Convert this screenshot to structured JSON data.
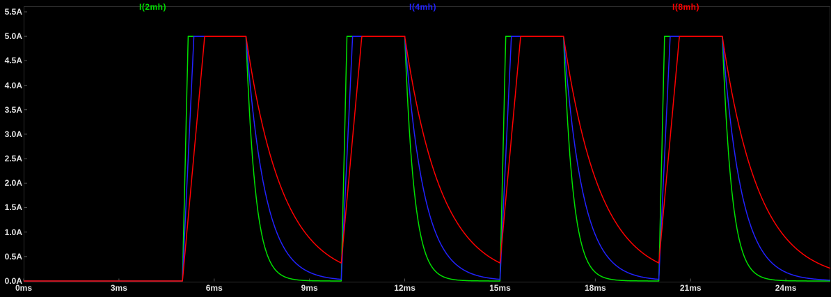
{
  "chart_data": {
    "type": "line",
    "title": "",
    "x_unit": "ms",
    "y_unit": "A",
    "xlim": [
      0,
      25.4
    ],
    "ylim": [
      0,
      5.5
    ],
    "x_ticks": [
      0,
      3,
      6,
      9,
      12,
      15,
      18,
      21,
      24
    ],
    "x_tick_labels": [
      "0ms",
      "3ms",
      "6ms",
      "9ms",
      "12ms",
      "15ms",
      "18ms",
      "21ms",
      "24ms"
    ],
    "y_ticks": [
      0,
      0.5,
      1.0,
      1.5,
      2.0,
      2.5,
      3.0,
      3.5,
      4.0,
      4.5,
      5.0,
      5.5
    ],
    "y_tick_labels": [
      "0.0A",
      "0.5A",
      "1.0A",
      "1.5A",
      "2.0A",
      "2.5A",
      "3.0A",
      "3.5A",
      "4.0A",
      "4.5A",
      "5.0A",
      "5.5A"
    ],
    "grid": false,
    "legend_position": "top",
    "background_color": "#000000",
    "axis_text_color": "#e2e2e2",
    "series": [
      {
        "name": "I(2mh)",
        "color": "#00e000",
        "inductance_mH": 2,
        "rise_time_ms": 0.18,
        "decay_tau_ms": 0.3
      },
      {
        "name": "I(4mh)",
        "color": "#2222ff",
        "inductance_mH": 4,
        "rise_time_ms": 0.36,
        "decay_tau_ms": 0.6
      },
      {
        "name": "I(8mh)",
        "color": "#ff0000",
        "inductance_mH": 8,
        "rise_time_ms": 0.7,
        "decay_tau_ms": 1.15
      }
    ],
    "pulse": {
      "first_on_ms": 5,
      "period_ms": 5,
      "on_duration_ms": 2,
      "amplitude_A": 5,
      "count": 4
    }
  }
}
